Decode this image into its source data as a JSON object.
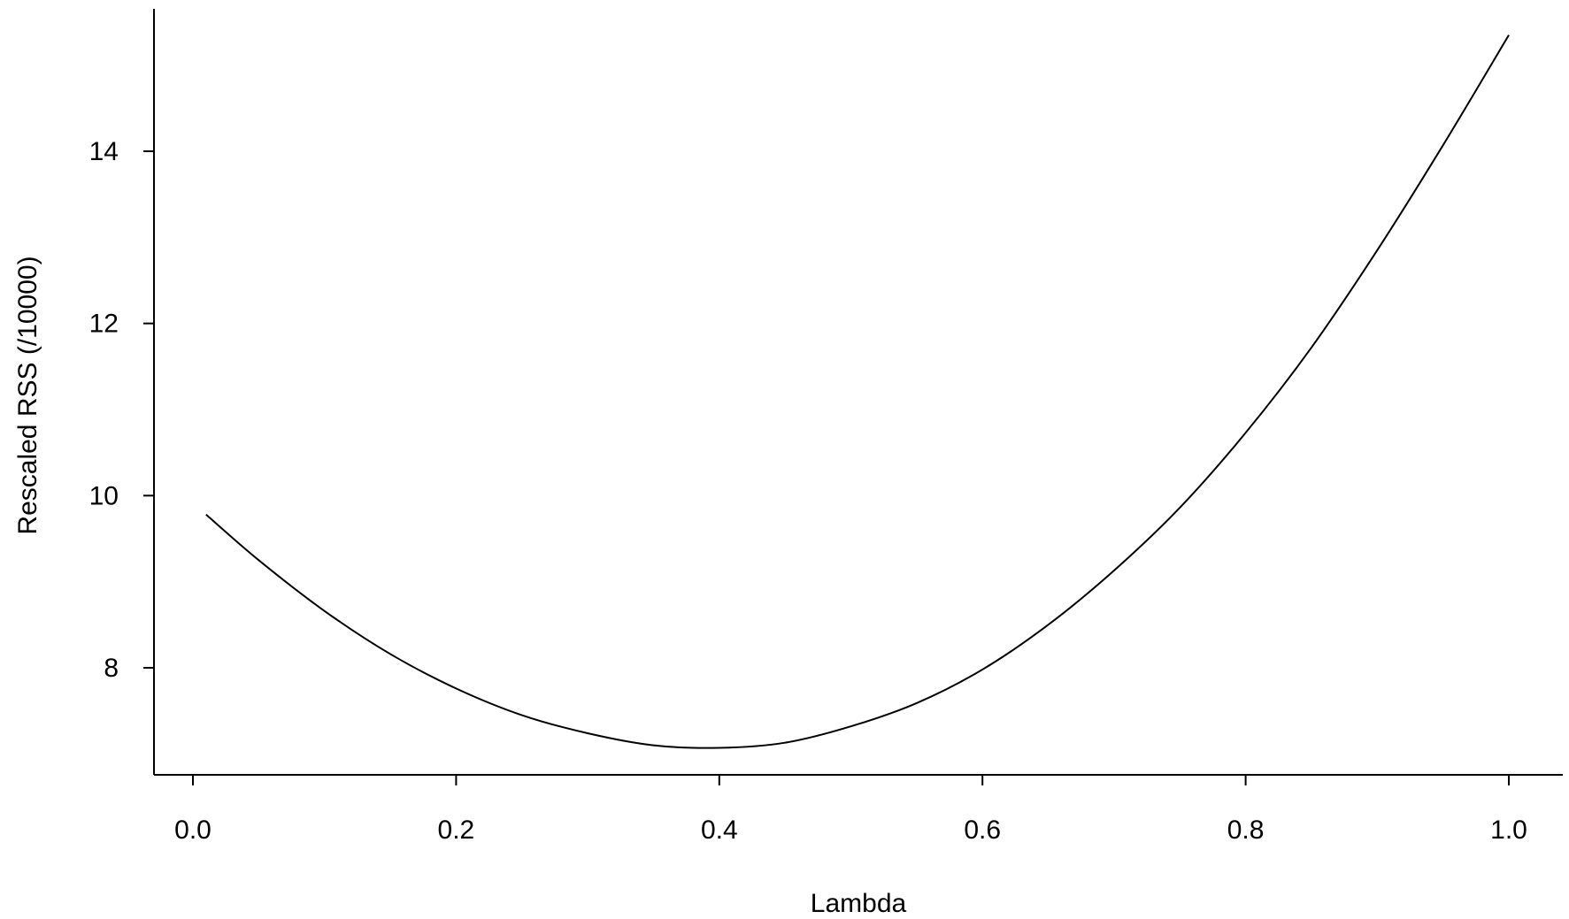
{
  "chart_data": {
    "type": "line",
    "title": "",
    "xlabel": "Lambda",
    "ylabel": "Rescaled RSS (/10000)",
    "xlim": [
      -0.03,
      1.03
    ],
    "ylim": [
      6.6,
      15.6
    ],
    "x_ticks": [
      0.0,
      0.2,
      0.4,
      0.6,
      0.8,
      1.0
    ],
    "x_tick_labels": [
      "0.0",
      "0.2",
      "0.4",
      "0.6",
      "0.8",
      "1.0"
    ],
    "y_ticks": [
      8,
      10,
      12,
      14
    ],
    "y_tick_labels": [
      "8",
      "10",
      "12",
      "14"
    ],
    "grid": false,
    "legend": "none",
    "line_color": "#000000",
    "series": [
      {
        "x": [
          0.01,
          0.05,
          0.1,
          0.15,
          0.2,
          0.25,
          0.3,
          0.35,
          0.4,
          0.45,
          0.5,
          0.55,
          0.6,
          0.65,
          0.7,
          0.75,
          0.8,
          0.85,
          0.9,
          0.95,
          1.0
        ],
        "values": [
          9.78,
          9.25,
          8.66,
          8.16,
          7.76,
          7.45,
          7.24,
          7.1,
          7.07,
          7.13,
          7.32,
          7.59,
          7.98,
          8.5,
          9.13,
          9.86,
          10.73,
          11.72,
          12.85,
          14.07,
          15.35
        ]
      }
    ]
  }
}
